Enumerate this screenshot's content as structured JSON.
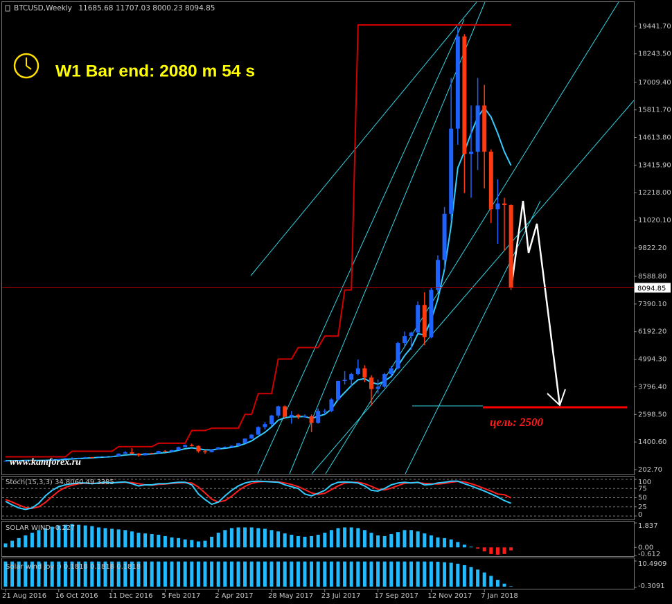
{
  "chart_data": [
    {
      "type": "candlestick",
      "title": "BTCUSD,Weekly",
      "annotation": "W1 Bar end: 2080 m 54 s",
      "watermark": "www.kamforex.ru",
      "target_label": "цель: 2500",
      "categories": [
        "21 Aug 2016",
        null,
        null,
        null,
        null,
        null,
        null,
        null,
        "16 Oct 2016",
        null,
        null,
        null,
        null,
        null,
        null,
        null,
        "11 Dec 2016",
        null,
        null,
        null,
        null,
        null,
        null,
        null,
        "5 Feb 2017",
        null,
        null,
        null,
        null,
        null,
        null,
        null,
        "2 Apr 2017",
        null,
        null,
        null,
        null,
        null,
        null,
        null,
        "28 May 2017",
        null,
        null,
        null,
        null,
        null,
        null,
        null,
        "23 Jul 2017",
        null,
        null,
        null,
        null,
        null,
        null,
        null,
        "17 Sep 2017",
        null,
        null,
        null,
        null,
        null,
        null,
        null,
        "12 Nov 2017",
        null,
        null,
        null,
        null,
        null,
        null,
        null,
        "7 Jan 2018",
        null,
        null,
        null,
        null
      ],
      "open": [
        570,
        580,
        575,
        608,
        608,
        597,
        608,
        612,
        640,
        657,
        700,
        705,
        705,
        740,
        735,
        770,
        770,
        790,
        900,
        960,
        900,
        820,
        920,
        915,
        1010,
        990,
        1050,
        1180,
        1270,
        1230,
        1000,
        960,
        1080,
        1170,
        1180,
        1240,
        1350,
        1550,
        1720,
        2050,
        2180,
        2550,
        2950,
        2500,
        2580,
        2500,
        2520,
        2230,
        2750,
        2750,
        3250,
        4050,
        4100,
        4350,
        4600,
        4200,
        3700,
        3800,
        4350,
        4600,
        5700,
        6000,
        6150,
        7350,
        5950,
        8000,
        9300,
        11300,
        15000,
        19000,
        13900,
        14000,
        16000,
        14000,
        11500,
        11750,
        11685.68
      ],
      "high": [
        600,
        590,
        620,
        615,
        612,
        612,
        620,
        645,
        660,
        710,
        740,
        725,
        755,
        750,
        775,
        780,
        800,
        910,
        1000,
        1130,
        920,
        930,
        935,
        1025,
        1050,
        1060,
        1200,
        1290,
        1330,
        1250,
        1050,
        1100,
        1180,
        1210,
        1250,
        1360,
        1560,
        1740,
        2080,
        2270,
        2580,
        2980,
        2990,
        2750,
        2620,
        2600,
        2600,
        2860,
        2830,
        3300,
        4060,
        4480,
        4400,
        4980,
        4730,
        4300,
        4120,
        4400,
        4700,
        5750,
        6200,
        6190,
        7500,
        7900,
        8100,
        9500,
        11600,
        17200,
        19400,
        19100,
        16000,
        17200,
        16900,
        14100,
        12800,
        12000,
        11707.03
      ],
      "low": [
        555,
        560,
        570,
        600,
        590,
        593,
        605,
        610,
        635,
        650,
        690,
        690,
        700,
        725,
        730,
        755,
        765,
        785,
        890,
        890,
        760,
        815,
        890,
        910,
        970,
        980,
        1040,
        1170,
        1210,
        940,
        890,
        950,
        1070,
        1160,
        1170,
        1230,
        1340,
        1540,
        1700,
        1950,
        2100,
        2450,
        2400,
        2200,
        2400,
        2460,
        1830,
        2200,
        2600,
        2700,
        3200,
        3900,
        3850,
        4300,
        4000,
        2980,
        3500,
        3750,
        4250,
        4550,
        5550,
        5400,
        6100,
        5600,
        5900,
        7900,
        8900,
        11000,
        14300,
        12200,
        12000,
        13200,
        12400,
        10900,
        10000,
        9700,
        8000.23
      ],
      "close": [
        580,
        575,
        608,
        608,
        597,
        608,
        612,
        640,
        657,
        700,
        705,
        705,
        740,
        735,
        770,
        770,
        790,
        900,
        960,
        900,
        820,
        920,
        915,
        1010,
        990,
        1050,
        1180,
        1270,
        1230,
        1000,
        960,
        1080,
        1170,
        1180,
        1240,
        1350,
        1550,
        1720,
        2050,
        2180,
        2550,
        2950,
        2500,
        2580,
        2500,
        2520,
        2230,
        2750,
        2750,
        3250,
        4050,
        4100,
        4350,
        4600,
        4200,
        3700,
        3800,
        4350,
        4600,
        5700,
        6000,
        6150,
        7350,
        5950,
        8000,
        9300,
        11300,
        15000,
        19000,
        13900,
        14000,
        16000,
        14000,
        11500,
        11750,
        11685.68,
        8094.85
      ],
      "up_color": "#1f63ff",
      "down_color": "#ff3a10",
      "series": [
        {
          "color": "#d00000",
          "values": [
            760,
            760,
            760,
            760,
            760,
            760,
            760,
            760,
            760,
            760,
            1000,
            1000,
            1000,
            1000,
            1000,
            1000,
            1000,
            1200,
            1200,
            1200,
            1200,
            1200,
            1200,
            1350,
            1350,
            1350,
            1350,
            1350,
            1900,
            1900,
            1900,
            2000,
            2000,
            2000,
            2000,
            2000,
            2600,
            2600,
            3500,
            3500,
            3500,
            5000,
            5000,
            5000,
            5500,
            5500,
            5500,
            5500,
            6000,
            6000,
            6000,
            8000,
            8000,
            19500,
            19500,
            19500,
            19500,
            19500,
            19500,
            19500,
            19500,
            19500,
            19500,
            19500,
            19500,
            19500,
            19500,
            19500,
            19500,
            19500,
            19500,
            19500,
            19500,
            19500,
            19500,
            19500,
            19500
          ]
        },
        {
          "color": "#33ccff",
          "values": [
            590,
            590,
            595,
            600,
            600,
            603,
            606,
            615,
            630,
            650,
            670,
            685,
            700,
            715,
            735,
            750,
            765,
            800,
            840,
            860,
            850,
            870,
            885,
            920,
            940,
            980,
            1040,
            1110,
            1150,
            1110,
            1060,
            1060,
            1100,
            1130,
            1170,
            1230,
            1330,
            1450,
            1640,
            1820,
            2060,
            2350,
            2450,
            2500,
            2500,
            2510,
            2420,
            2520,
            2600,
            2830,
            3250,
            3550,
            3850,
            4100,
            4150,
            3990,
            3910,
            4050,
            4250,
            4700,
            5150,
            5500,
            6100,
            6050,
            6700,
            7600,
            8900,
            10800,
            13300,
            14000,
            14800,
            15500,
            15900,
            15500,
            14800,
            14000,
            13400
          ]
        }
      ],
      "ylim": [
        -7,
        20490
      ],
      "yticks": [
        {
          "value": 19441.7,
          "label": "19441.70"
        },
        {
          "value": 18243.5,
          "label": "18243.50"
        },
        {
          "value": 17009.4,
          "label": "17009.40"
        },
        {
          "value": 15811.7,
          "label": "15811.70"
        },
        {
          "value": 14613.8,
          "label": "14613.80"
        },
        {
          "value": 13415.9,
          "label": "13415.90"
        },
        {
          "value": 12218,
          "label": "12218.00"
        },
        {
          "value": 11020.1,
          "label": "11020.10"
        },
        {
          "value": 9822.2,
          "label": "9822.20"
        },
        {
          "value": 8588.8,
          "label": "8588.80"
        },
        {
          "value": 7390.1,
          "label": "7390.10"
        },
        {
          "value": 6192.2,
          "label": "6192.20"
        },
        {
          "value": 4994.3,
          "label": "4994.30"
        },
        {
          "value": 3796.4,
          "label": "3796.40"
        },
        {
          "value": 2598.5,
          "label": "2598.50"
        },
        {
          "value": 1400.6,
          "label": "1400.60"
        },
        {
          "value": 202.7,
          "label": "202.70"
        }
      ],
      "grid": false
    },
    {
      "type": "line",
      "title": "Stoch(15,3,3) 34.8060 49.3385",
      "series": [
        {
          "color": "#ff2020",
          "values": [
            45,
            38,
            30,
            23,
            21,
            25,
            37,
            53,
            68,
            78,
            84,
            88,
            89,
            89,
            89,
            90,
            91,
            91,
            92,
            91,
            88,
            85,
            84,
            86,
            87,
            89,
            90,
            91,
            90,
            79,
            63,
            46,
            38,
            42,
            54,
            69,
            81,
            89,
            93,
            94,
            94,
            93,
            90,
            86,
            80,
            72,
            63,
            59,
            62,
            72,
            82,
            90,
            92,
            92,
            88,
            81,
            73,
            71,
            76,
            83,
            89,
            91,
            91,
            89,
            88,
            87,
            89,
            92,
            94,
            93,
            88,
            82,
            75,
            68,
            60,
            58,
            49.3385
          ]
        },
        {
          "color": "#33ccff",
          "values": [
            40,
            30,
            22,
            18,
            22,
            35,
            55,
            70,
            80,
            85,
            88,
            90,
            90,
            88,
            90,
            92,
            90,
            92,
            93,
            88,
            82,
            85,
            85,
            88,
            88,
            90,
            92,
            92,
            85,
            60,
            45,
            32,
            38,
            55,
            70,
            82,
            90,
            94,
            95,
            94,
            93,
            92,
            85,
            80,
            75,
            60,
            55,
            62,
            70,
            85,
            92,
            93,
            92,
            90,
            82,
            70,
            68,
            75,
            85,
            90,
            92,
            90,
            92,
            85,
            86,
            90,
            92,
            95,
            95,
            88,
            82,
            75,
            68,
            60,
            52,
            42,
            34.806
          ]
        }
      ],
      "ylim": [
        0,
        100
      ],
      "yticks": [
        0,
        25,
        50,
        75,
        100
      ],
      "grid": true
    },
    {
      "type": "bar",
      "title": "SOLAR WIND -0.227",
      "color": "#22bbff",
      "negative_color": "#ff1a1a",
      "values": [
        0.3,
        0.5,
        0.7,
        0.9,
        1.1,
        1.3,
        1.45,
        1.55,
        1.65,
        1.7,
        1.75,
        1.7,
        1.65,
        1.6,
        1.5,
        1.45,
        1.4,
        1.35,
        1.3,
        1.2,
        1.1,
        1.05,
        1.0,
        0.95,
        0.85,
        0.75,
        0.7,
        0.6,
        0.55,
        0.45,
        0.5,
        0.8,
        1.1,
        1.3,
        1.45,
        1.5,
        1.5,
        1.5,
        1.45,
        1.4,
        1.3,
        1.2,
        1.05,
        0.95,
        0.85,
        0.8,
        0.85,
        0.95,
        1.1,
        1.3,
        1.45,
        1.5,
        1.5,
        1.45,
        1.3,
        1.1,
        0.9,
        0.85,
        1.0,
        1.15,
        1.3,
        1.3,
        1.2,
        1.05,
        0.9,
        0.75,
        0.7,
        0.6,
        0.4,
        0.2,
        0.05,
        -0.1,
        -0.3,
        -0.5,
        -0.55,
        -0.5,
        -0.227
      ],
      "ylim": [
        -0.612,
        1.837
      ],
      "yticks": [
        1.837,
        {
          "value": 0,
          "label": "0.00"
        },
        -0.612
      ],
      "grid": false
    },
    {
      "type": "bar",
      "title": "Solar wind joy :) 0.1818 0.1818 0.1818",
      "color": "#22bbff",
      "values": [
        10.3,
        10.3,
        10.3,
        10.3,
        10.3,
        10.3,
        10.3,
        10.3,
        10.3,
        10.3,
        10.3,
        10.3,
        10.3,
        10.3,
        10.3,
        10.3,
        10.3,
        10.3,
        10.3,
        10.3,
        10.3,
        10.3,
        10.3,
        10.3,
        10.3,
        10.3,
        10.3,
        10.3,
        10.3,
        10.3,
        10.3,
        10.3,
        10.3,
        10.3,
        10.3,
        10.3,
        10.3,
        10.3,
        10.3,
        10.3,
        10.3,
        10.3,
        10.3,
        10.3,
        10.3,
        10.3,
        10.3,
        10.3,
        10.3,
        10.3,
        10.3,
        10.3,
        10.3,
        10.3,
        10.3,
        10.3,
        10.3,
        10.3,
        10.3,
        10.3,
        10.3,
        10.3,
        10.3,
        10.3,
        10.3,
        10.2,
        10,
        9.8,
        9.4,
        8.8,
        8,
        7,
        5.8,
        4.4,
        2.8,
        1.2,
        0.1818
      ],
      "ylim": [
        -0.3091,
        10.4909
      ],
      "yticks": [
        10.4909,
        -0.3091
      ],
      "grid": false
    }
  ]
}
